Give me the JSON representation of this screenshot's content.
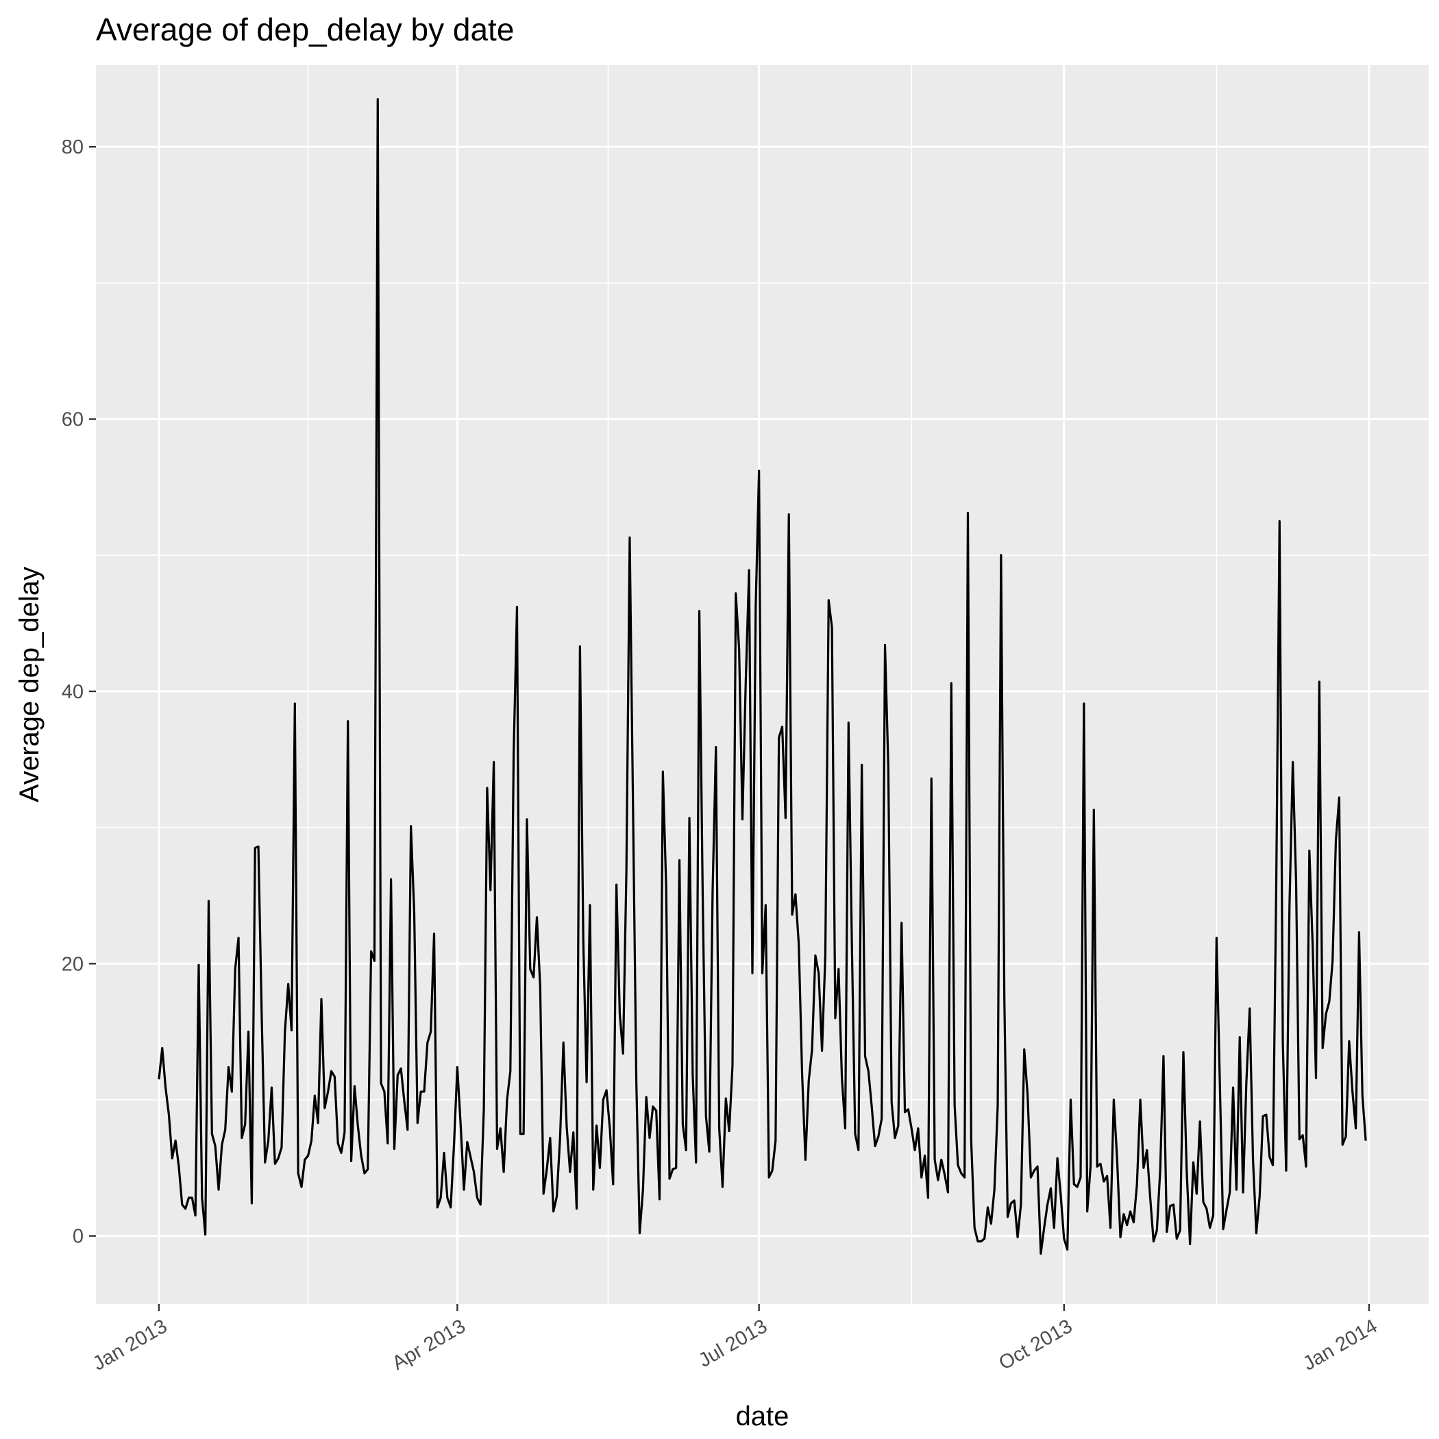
{
  "chart_data": {
    "type": "line",
    "title": "Average of dep_delay by date",
    "xlabel": "date",
    "ylabel": "Average dep_delay",
    "x_range": [
      "2012-12-13",
      "2014-01-19"
    ],
    "ylim": [
      -5,
      86
    ],
    "y_ticks": [
      0,
      20,
      40,
      60,
      80
    ],
    "y_tick_labels": [
      "0",
      "20",
      "40",
      "60",
      "80"
    ],
    "x_ticks": [
      "2013-01-01",
      "2013-04-01",
      "2013-07-01",
      "2013-10-01",
      "2014-01-01"
    ],
    "x_tick_labels": [
      "Jan 2013",
      "Apr 2013",
      "Jul 2013",
      "Oct 2013",
      "Jan 2014"
    ],
    "grid": true,
    "legend": "none",
    "series_color": "#000000",
    "panel_color": "#ebebeb",
    "series": [
      {
        "x": [
          "2013-01-01",
          "2013-01-02",
          "2013-01-03",
          "2013-01-04",
          "2013-01-05",
          "2013-01-06",
          "2013-01-07",
          "2013-01-08",
          "2013-01-09",
          "2013-01-10",
          "2013-01-11",
          "2013-01-12",
          "2013-01-13",
          "2013-01-14",
          "2013-01-15",
          "2013-01-16",
          "2013-01-17",
          "2013-01-18",
          "2013-01-19",
          "2013-01-20",
          "2013-01-21",
          "2013-01-22",
          "2013-01-23",
          "2013-01-24",
          "2013-01-25",
          "2013-01-26",
          "2013-01-27",
          "2013-01-28",
          "2013-01-29",
          "2013-01-30",
          "2013-01-31",
          "2013-02-01",
          "2013-02-02",
          "2013-02-03",
          "2013-02-04",
          "2013-02-05",
          "2013-02-06",
          "2013-02-07",
          "2013-02-08",
          "2013-02-09",
          "2013-02-10",
          "2013-02-11",
          "2013-02-12",
          "2013-02-13",
          "2013-02-14",
          "2013-02-15",
          "2013-02-16",
          "2013-02-17",
          "2013-02-18",
          "2013-02-19",
          "2013-02-20",
          "2013-02-21",
          "2013-02-22",
          "2013-02-23",
          "2013-02-24",
          "2013-02-25",
          "2013-02-26",
          "2013-02-27",
          "2013-02-28",
          "2013-03-01",
          "2013-03-02",
          "2013-03-03",
          "2013-03-04",
          "2013-03-05",
          "2013-03-06",
          "2013-03-07",
          "2013-03-08",
          "2013-03-09",
          "2013-03-10",
          "2013-03-11",
          "2013-03-12",
          "2013-03-13",
          "2013-03-14",
          "2013-03-15",
          "2013-03-16",
          "2013-03-17",
          "2013-03-18",
          "2013-03-19",
          "2013-03-20",
          "2013-03-21",
          "2013-03-22",
          "2013-03-23",
          "2013-03-24",
          "2013-03-25",
          "2013-03-26",
          "2013-03-27",
          "2013-03-28",
          "2013-03-29",
          "2013-03-30",
          "2013-03-31",
          "2013-04-01",
          "2013-04-02",
          "2013-04-03",
          "2013-04-04",
          "2013-04-05",
          "2013-04-06",
          "2013-04-07",
          "2013-04-08",
          "2013-04-09",
          "2013-04-10",
          "2013-04-11",
          "2013-04-12",
          "2013-04-13",
          "2013-04-14",
          "2013-04-15",
          "2013-04-16",
          "2013-04-17",
          "2013-04-18",
          "2013-04-19",
          "2013-04-20",
          "2013-04-21",
          "2013-04-22",
          "2013-04-23",
          "2013-04-24",
          "2013-04-25",
          "2013-04-26",
          "2013-04-27",
          "2013-04-28",
          "2013-04-29",
          "2013-04-30",
          "2013-05-01",
          "2013-05-02",
          "2013-05-03",
          "2013-05-04",
          "2013-05-05",
          "2013-05-06",
          "2013-05-07",
          "2013-05-08",
          "2013-05-09",
          "2013-05-10",
          "2013-05-11",
          "2013-05-12",
          "2013-05-13",
          "2013-05-14",
          "2013-05-15",
          "2013-05-16",
          "2013-05-17",
          "2013-05-18",
          "2013-05-19",
          "2013-05-20",
          "2013-05-21",
          "2013-05-22",
          "2013-05-23",
          "2013-05-24",
          "2013-05-25",
          "2013-05-26",
          "2013-05-27",
          "2013-05-28",
          "2013-05-29",
          "2013-05-30",
          "2013-05-31",
          "2013-06-01",
          "2013-06-02",
          "2013-06-03",
          "2013-06-04",
          "2013-06-05",
          "2013-06-06",
          "2013-06-07",
          "2013-06-08",
          "2013-06-09",
          "2013-06-10",
          "2013-06-11",
          "2013-06-12",
          "2013-06-13",
          "2013-06-14",
          "2013-06-15",
          "2013-06-16",
          "2013-06-17",
          "2013-06-18",
          "2013-06-19",
          "2013-06-20",
          "2013-06-21",
          "2013-06-22",
          "2013-06-23",
          "2013-06-24",
          "2013-06-25",
          "2013-06-26",
          "2013-06-27",
          "2013-06-28",
          "2013-06-29",
          "2013-06-30",
          "2013-07-01",
          "2013-07-02",
          "2013-07-03",
          "2013-07-04",
          "2013-07-05",
          "2013-07-06",
          "2013-07-07",
          "2013-07-08",
          "2013-07-09",
          "2013-07-10",
          "2013-07-11",
          "2013-07-12",
          "2013-07-13",
          "2013-07-14",
          "2013-07-15",
          "2013-07-16",
          "2013-07-17",
          "2013-07-18",
          "2013-07-19",
          "2013-07-20",
          "2013-07-21",
          "2013-07-22",
          "2013-07-23",
          "2013-07-24",
          "2013-07-25",
          "2013-07-26",
          "2013-07-27",
          "2013-07-28",
          "2013-07-29",
          "2013-07-30",
          "2013-07-31",
          "2013-08-01",
          "2013-08-02",
          "2013-08-03",
          "2013-08-04",
          "2013-08-05",
          "2013-08-06",
          "2013-08-07",
          "2013-08-08",
          "2013-08-09",
          "2013-08-10",
          "2013-08-11",
          "2013-08-12",
          "2013-08-13",
          "2013-08-14",
          "2013-08-15",
          "2013-08-16",
          "2013-08-17",
          "2013-08-18",
          "2013-08-19",
          "2013-08-20",
          "2013-08-21",
          "2013-08-22",
          "2013-08-23",
          "2013-08-24",
          "2013-08-25",
          "2013-08-26",
          "2013-08-27",
          "2013-08-28",
          "2013-08-29",
          "2013-08-30",
          "2013-08-31",
          "2013-09-01",
          "2013-09-02",
          "2013-09-03",
          "2013-09-04",
          "2013-09-05",
          "2013-09-06",
          "2013-09-07",
          "2013-09-08",
          "2013-09-09",
          "2013-09-10",
          "2013-09-11",
          "2013-09-12",
          "2013-09-13",
          "2013-09-14",
          "2013-09-15",
          "2013-09-16",
          "2013-09-17",
          "2013-09-18",
          "2013-09-19",
          "2013-09-20",
          "2013-09-21",
          "2013-09-22",
          "2013-09-23",
          "2013-09-24",
          "2013-09-25",
          "2013-09-26",
          "2013-09-27",
          "2013-09-28",
          "2013-09-29",
          "2013-09-30",
          "2013-10-01",
          "2013-10-02",
          "2013-10-03",
          "2013-10-04",
          "2013-10-05",
          "2013-10-06",
          "2013-10-07",
          "2013-10-08",
          "2013-10-09",
          "2013-10-10",
          "2013-10-11",
          "2013-10-12",
          "2013-10-13",
          "2013-10-14",
          "2013-10-15",
          "2013-10-16",
          "2013-10-17",
          "2013-10-18",
          "2013-10-19",
          "2013-10-20",
          "2013-10-21",
          "2013-10-22",
          "2013-10-23",
          "2013-10-24",
          "2013-10-25",
          "2013-10-26",
          "2013-10-27",
          "2013-10-28",
          "2013-10-29",
          "2013-10-30",
          "2013-10-31",
          "2013-11-01",
          "2013-11-02",
          "2013-11-03",
          "2013-11-04",
          "2013-11-05",
          "2013-11-06",
          "2013-11-07",
          "2013-11-08",
          "2013-11-09",
          "2013-11-10",
          "2013-11-11",
          "2013-11-12",
          "2013-11-13",
          "2013-11-14",
          "2013-11-15",
          "2013-11-16",
          "2013-11-17",
          "2013-11-18",
          "2013-11-19",
          "2013-11-20",
          "2013-11-21",
          "2013-11-22",
          "2013-11-23",
          "2013-11-24",
          "2013-11-25",
          "2013-11-26",
          "2013-11-27",
          "2013-11-28",
          "2013-11-29",
          "2013-11-30",
          "2013-12-01",
          "2013-12-02",
          "2013-12-03",
          "2013-12-04",
          "2013-12-05",
          "2013-12-06",
          "2013-12-07",
          "2013-12-08",
          "2013-12-09",
          "2013-12-10",
          "2013-12-11",
          "2013-12-12",
          "2013-12-13",
          "2013-12-14",
          "2013-12-15",
          "2013-12-16",
          "2013-12-17",
          "2013-12-18",
          "2013-12-19",
          "2013-12-20",
          "2013-12-21",
          "2013-12-22",
          "2013-12-23",
          "2013-12-24",
          "2013-12-25",
          "2013-12-26",
          "2013-12-27",
          "2013-12-28",
          "2013-12-29",
          "2013-12-30",
          "2013-12-31"
        ],
        "y": [
          11.5,
          13.8,
          10.9,
          8.9,
          5.7,
          7.0,
          5.1,
          2.3,
          2.0,
          2.8,
          2.8,
          1.5,
          19.9,
          2.8,
          0.1,
          24.6,
          7.5,
          6.6,
          3.4,
          6.7,
          7.8,
          12.4,
          10.6,
          19.6,
          21.9,
          7.2,
          8.2,
          15.0,
          2.4,
          28.5,
          28.6,
          16.2,
          5.4,
          7.0,
          10.9,
          5.3,
          5.7,
          6.5,
          15.0,
          18.5,
          15.1,
          39.1,
          4.6,
          3.6,
          5.6,
          5.9,
          7.0,
          10.3,
          8.3,
          17.4,
          9.4,
          10.6,
          12.1,
          11.7,
          6.8,
          6.1,
          7.6,
          37.8,
          5.5,
          11.0,
          8.1,
          5.9,
          4.6,
          4.9,
          20.9,
          20.2,
          83.5,
          11.2,
          10.6,
          6.8,
          26.2,
          6.4,
          11.8,
          12.3,
          9.9,
          7.8,
          30.1,
          23.8,
          8.3,
          10.6,
          10.6,
          14.2,
          15.0,
          22.2,
          2.1,
          2.8,
          6.1,
          2.8,
          2.1,
          6.7,
          12.4,
          8.2,
          3.4,
          6.9,
          5.8,
          4.7,
          2.8,
          2.3,
          9.3,
          32.9,
          25.4,
          34.8,
          6.4,
          7.9,
          4.7,
          10.0,
          12.1,
          35.5,
          46.2,
          7.5,
          7.5,
          30.6,
          19.6,
          19.0,
          23.4,
          18.3,
          3.1,
          4.9,
          7.2,
          1.8,
          2.9,
          7.2,
          14.2,
          8.0,
          4.7,
          7.6,
          2.0,
          43.3,
          21.7,
          11.3,
          24.3,
          3.4,
          8.1,
          5.0,
          10.0,
          10.7,
          7.9,
          3.8,
          25.8,
          16.3,
          13.4,
          26.8,
          51.3,
          31.4,
          11.3,
          0.2,
          3.4,
          10.2,
          7.2,
          9.5,
          9.2,
          2.7,
          34.1,
          25.6,
          4.2,
          4.9,
          5.0,
          27.6,
          8.2,
          6.3,
          30.7,
          11.8,
          5.4,
          45.9,
          25.3,
          8.8,
          6.2,
          25.3,
          35.9,
          7.9,
          3.6,
          10.1,
          7.7,
          12.5,
          47.2,
          43.1,
          30.6,
          40.7,
          48.9,
          19.3,
          46.2,
          56.2,
          19.3,
          24.3,
          4.3,
          4.8,
          7.0,
          36.6,
          37.4,
          30.7,
          53.0,
          23.6,
          25.1,
          21.4,
          11.9,
          5.6,
          11.4,
          13.7,
          20.6,
          19.3,
          13.6,
          20.6,
          46.7,
          44.7,
          16.0,
          19.6,
          11.6,
          7.9,
          37.7,
          21.6,
          7.5,
          6.3,
          34.6,
          13.2,
          12.1,
          9.5,
          6.6,
          7.3,
          8.6,
          43.4,
          34.4,
          9.8,
          7.2,
          8.1,
          23.0,
          9.1,
          9.3,
          7.9,
          6.3,
          7.9,
          4.3,
          5.9,
          2.8,
          33.6,
          5.6,
          4.1,
          5.6,
          4.5,
          3.2,
          40.6,
          9.6,
          5.2,
          4.6,
          4.3,
          53.1,
          7.0,
          0.6,
          -0.4,
          -0.4,
          -0.2,
          2.1,
          0.9,
          3.4,
          9.6,
          50.0,
          17.4,
          1.4,
          2.4,
          2.6,
          -0.1,
          2.3,
          13.7,
          10.4,
          4.3,
          4.8,
          5.1,
          -1.3,
          0.6,
          2.3,
          3.5,
          0.6,
          5.7,
          3.0,
          -0.2,
          -1.0,
          10.0,
          3.8,
          3.6,
          4.3,
          39.1,
          1.8,
          5.1,
          31.3,
          5.1,
          5.3,
          4.0,
          4.4,
          0.6,
          10.0,
          5.7,
          -0.1,
          1.6,
          0.8,
          1.8,
          1.0,
          3.8,
          10.0,
          5.0,
          6.3,
          2.8,
          -0.4,
          0.4,
          4.8,
          13.2,
          0.3,
          2.2,
          2.3,
          -0.2,
          0.4,
          13.5,
          4.8,
          -0.6,
          5.4,
          3.1,
          8.4,
          2.5,
          2.0,
          0.6,
          1.5,
          21.9,
          11.2,
          0.5,
          1.9,
          3.2,
          10.9,
          3.4,
          14.6,
          3.2,
          11.3,
          16.7,
          5.6,
          0.2,
          2.9,
          8.8,
          8.9,
          5.8,
          5.2,
          25.5,
          52.5,
          14.1,
          4.8,
          24.2,
          34.8,
          26.0,
          7.1,
          7.4,
          5.1,
          28.3,
          21.3,
          11.6,
          40.7,
          13.8,
          16.3,
          17.2,
          20.2,
          29.1,
          32.2,
          6.7,
          7.3,
          14.3,
          10.6,
          7.9,
          22.3,
          10.3,
          7.0
        ]
      }
    ]
  }
}
